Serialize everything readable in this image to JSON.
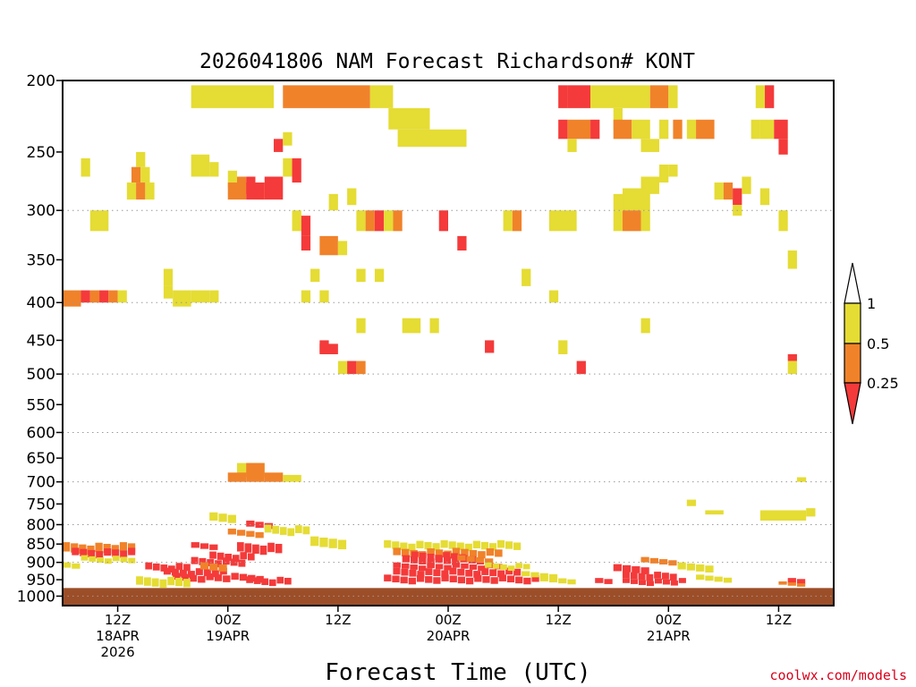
{
  "chart_data": {
    "type": "heatmap",
    "title": "2026041806 NAM Forecast Richardson# KONT",
    "xlabel": "Forecast Time (UTC)",
    "credit": "coolwx.com/models",
    "colors": {
      "ri_below_025": "#f43a3a",
      "ri_025_05": "#f0822a",
      "ri_05_1": "#e5dc34",
      "ground": "#9c4e28"
    },
    "x_hours_range": [
      6,
      90
    ],
    "y_pressure_range": [
      200,
      1030
    ],
    "y_ticks": [
      200,
      250,
      300,
      350,
      400,
      450,
      500,
      550,
      600,
      650,
      700,
      750,
      800,
      850,
      900,
      950,
      1000
    ],
    "y_tick_labels": [
      "200",
      "250",
      "300",
      "350",
      "400",
      "450",
      "500",
      "550",
      "600",
      "650",
      "700",
      "750",
      "800",
      "850",
      "900",
      "950",
      "1000"
    ],
    "y_grid_levels": [
      300,
      400,
      500,
      600,
      700,
      800,
      900,
      1000
    ],
    "x_ticks": [
      {
        "hour": 12,
        "lines": [
          "12Z",
          "18APR",
          "2026"
        ]
      },
      {
        "hour": 24,
        "lines": [
          "00Z",
          "19APR"
        ]
      },
      {
        "hour": 36,
        "lines": [
          "12Z"
        ]
      },
      {
        "hour": 48,
        "lines": [
          "00Z",
          "20APR"
        ]
      },
      {
        "hour": 60,
        "lines": [
          "12Z"
        ]
      },
      {
        "hour": 72,
        "lines": [
          "00Z",
          "21APR"
        ]
      },
      {
        "hour": 84,
        "lines": [
          "12Z"
        ]
      }
    ],
    "legend": {
      "labels": [
        "1",
        "0.5",
        "0.25"
      ],
      "bins": [
        "Ri < 0.25",
        "0.25-0.5",
        "0.5-1"
      ]
    },
    "ground_top_pressure": 975,
    "cells": [
      [
        20,
        29,
        203,
        218,
        "y"
      ],
      [
        30,
        39.5,
        203,
        218,
        "o"
      ],
      [
        39.5,
        42,
        203,
        218,
        "y"
      ],
      [
        41.5,
        46,
        218,
        233,
        "y"
      ],
      [
        42.5,
        50,
        233,
        246,
        "y"
      ],
      [
        60,
        61,
        203,
        218,
        "r"
      ],
      [
        61,
        63.5,
        203,
        218,
        "r"
      ],
      [
        63.5,
        70,
        203,
        218,
        "y"
      ],
      [
        66,
        67,
        218,
        233,
        "y"
      ],
      [
        70,
        72,
        203,
        218,
        "o"
      ],
      [
        72,
        73,
        203,
        218,
        "y"
      ],
      [
        81.5,
        82.5,
        203,
        218,
        "y"
      ],
      [
        82.5,
        83.5,
        203,
        218,
        "r"
      ],
      [
        60,
        61,
        226,
        240,
        "r"
      ],
      [
        61,
        63.5,
        226,
        240,
        "o"
      ],
      [
        63.5,
        64.5,
        226,
        240,
        "r"
      ],
      [
        66,
        68,
        226,
        240,
        "o"
      ],
      [
        68,
        70,
        226,
        240,
        "y"
      ],
      [
        71,
        72,
        226,
        240,
        "y"
      ],
      [
        72.5,
        73.5,
        226,
        240,
        "o"
      ],
      [
        74,
        75,
        226,
        240,
        "y"
      ],
      [
        75,
        77,
        226,
        240,
        "o"
      ],
      [
        81,
        82,
        226,
        240,
        "y"
      ],
      [
        82,
        83.5,
        226,
        240,
        "y"
      ],
      [
        83.5,
        85,
        226,
        240,
        "r"
      ],
      [
        84,
        85,
        240,
        252,
        "r"
      ],
      [
        61,
        62,
        240,
        250,
        "y"
      ],
      [
        69,
        71,
        240,
        250,
        "y"
      ],
      [
        8,
        9,
        255,
        270,
        "y"
      ],
      [
        14,
        15,
        250,
        262,
        "y"
      ],
      [
        13.5,
        14.5,
        262,
        275,
        "o"
      ],
      [
        14.5,
        15.5,
        262,
        275,
        "y"
      ],
      [
        13,
        14,
        275,
        290,
        "y"
      ],
      [
        14,
        15,
        275,
        290,
        "o"
      ],
      [
        15,
        16,
        275,
        290,
        "y"
      ],
      [
        20,
        22,
        252,
        270,
        "y"
      ],
      [
        22,
        23,
        258,
        270,
        "y"
      ],
      [
        24,
        25,
        265,
        280,
        "y"
      ],
      [
        25,
        26,
        270,
        285,
        "o"
      ],
      [
        26,
        27,
        270,
        285,
        "r"
      ],
      [
        27,
        28,
        275,
        290,
        "y"
      ],
      [
        29,
        30,
        240,
        250,
        "r"
      ],
      [
        30,
        31,
        235,
        245,
        "y"
      ],
      [
        24,
        26,
        275,
        290,
        "o"
      ],
      [
        26,
        27,
        275,
        290,
        "r"
      ],
      [
        27,
        28,
        275,
        290,
        "r"
      ],
      [
        28,
        30,
        270,
        290,
        "r"
      ],
      [
        30,
        31,
        255,
        270,
        "y"
      ],
      [
        31,
        32,
        255,
        275,
        "r"
      ],
      [
        35,
        36,
        285,
        300,
        "y"
      ],
      [
        37,
        38,
        280,
        295,
        "y"
      ],
      [
        66,
        67,
        285,
        300,
        "y"
      ],
      [
        67,
        70,
        280,
        300,
        "y"
      ],
      [
        69,
        71,
        270,
        285,
        "y"
      ],
      [
        71,
        72,
        260,
        275,
        "y"
      ],
      [
        72,
        73,
        260,
        270,
        "y"
      ],
      [
        77,
        78,
        275,
        290,
        "y"
      ],
      [
        78,
        79,
        275,
        290,
        "o"
      ],
      [
        79,
        80,
        280,
        295,
        "r"
      ],
      [
        80,
        81,
        270,
        285,
        "y"
      ],
      [
        82,
        83,
        280,
        295,
        "y"
      ],
      [
        79,
        80,
        295,
        305,
        "y"
      ],
      [
        9,
        11,
        300,
        320,
        "y"
      ],
      [
        31,
        32,
        300,
        320,
        "y"
      ],
      [
        32,
        33,
        305,
        325,
        "r"
      ],
      [
        38,
        39,
        300,
        320,
        "y"
      ],
      [
        39,
        40,
        300,
        320,
        "o"
      ],
      [
        40,
        41,
        300,
        320,
        "r"
      ],
      [
        41,
        42,
        300,
        320,
        "y"
      ],
      [
        42,
        43,
        300,
        320,
        "o"
      ],
      [
        47,
        48,
        300,
        320,
        "r"
      ],
      [
        54,
        55,
        300,
        320,
        "y"
      ],
      [
        55,
        56,
        300,
        320,
        "o"
      ],
      [
        59,
        62,
        300,
        320,
        "y"
      ],
      [
        66,
        67,
        300,
        320,
        "y"
      ],
      [
        67,
        69,
        300,
        320,
        "o"
      ],
      [
        69,
        70,
        300,
        320,
        "y"
      ],
      [
        84,
        85,
        300,
        320,
        "y"
      ],
      [
        32,
        33,
        325,
        340,
        "r"
      ],
      [
        34,
        36,
        325,
        345,
        "o"
      ],
      [
        36,
        37,
        330,
        345,
        "y"
      ],
      [
        49,
        50,
        325,
        340,
        "r"
      ],
      [
        56,
        57,
        360,
        380,
        "y"
      ],
      [
        85,
        86,
        340,
        360,
        "y"
      ],
      [
        33,
        34,
        360,
        375,
        "y"
      ],
      [
        38,
        39,
        360,
        375,
        "y"
      ],
      [
        40,
        41,
        360,
        375,
        "y"
      ],
      [
        6,
        8,
        385,
        405,
        "o"
      ],
      [
        8,
        9,
        385,
        400,
        "r"
      ],
      [
        9,
        10,
        385,
        400,
        "o"
      ],
      [
        10,
        11,
        385,
        400,
        "r"
      ],
      [
        11,
        12,
        385,
        400,
        "o"
      ],
      [
        12,
        13,
        385,
        400,
        "y"
      ],
      [
        17,
        18,
        360,
        380,
        "y"
      ],
      [
        17,
        18,
        380,
        395,
        "y"
      ],
      [
        18,
        20,
        385,
        405,
        "y"
      ],
      [
        20,
        22,
        385,
        400,
        "y"
      ],
      [
        22,
        23,
        385,
        400,
        "y"
      ],
      [
        32,
        33,
        385,
        400,
        "y"
      ],
      [
        34,
        35,
        385,
        400,
        "y"
      ],
      [
        59,
        60,
        385,
        400,
        "y"
      ],
      [
        38,
        39,
        420,
        440,
        "y"
      ],
      [
        43,
        45,
        420,
        440,
        "y"
      ],
      [
        46,
        47,
        420,
        440,
        "y"
      ],
      [
        69,
        70,
        420,
        440,
        "y"
      ],
      [
        34,
        35,
        450,
        468,
        "r"
      ],
      [
        34,
        36,
        455,
        470,
        "r"
      ],
      [
        52,
        53,
        450,
        468,
        "r"
      ],
      [
        60,
        61,
        450,
        470,
        "y"
      ],
      [
        85,
        86,
        470,
        480,
        "r"
      ],
      [
        36,
        37,
        480,
        500,
        "y"
      ],
      [
        37,
        38,
        480,
        500,
        "r"
      ],
      [
        38,
        39,
        480,
        500,
        "o"
      ],
      [
        62,
        63,
        480,
        500,
        "r"
      ],
      [
        85,
        86,
        480,
        500,
        "y"
      ],
      [
        25,
        28,
        660,
        690,
        "y"
      ],
      [
        26,
        28,
        660,
        690,
        "o"
      ],
      [
        24,
        26,
        680,
        700,
        "o"
      ],
      [
        26,
        28,
        680,
        700,
        "o"
      ],
      [
        28,
        30,
        680,
        700,
        "o"
      ],
      [
        30,
        32,
        685,
        700,
        "y"
      ],
      [
        74,
        75,
        740,
        755,
        "y"
      ],
      [
        76,
        78,
        765,
        775,
        "y"
      ],
      [
        82,
        87,
        765,
        790,
        "y"
      ],
      [
        87,
        88,
        760,
        780,
        "y"
      ],
      [
        86,
        87,
        690,
        700,
        "y"
      ]
    ]
  }
}
